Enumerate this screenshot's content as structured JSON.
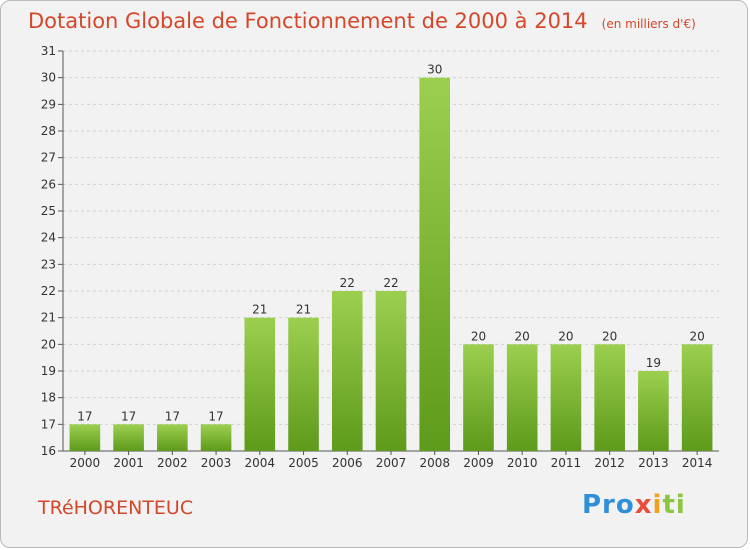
{
  "header": {
    "title": "Dotation Globale de Fonctionnement de 2000 à 2014",
    "unit": "(en milliers d'€)"
  },
  "footer": {
    "commune": "TRéHORENTEUC",
    "logo_parts": [
      "Pro",
      "x",
      "i",
      "ti"
    ]
  },
  "colors": {
    "bar_top": "#9ccf4f",
    "bar_bottom": "#5e9a1b",
    "title": "#d4472b",
    "grid": "#cfcfcf"
  },
  "chart_data": {
    "type": "bar",
    "title": "Dotation Globale de Fonctionnement de 2000 à 2014",
    "subtitle": "(en milliers d'€)",
    "categories": [
      "2000",
      "2001",
      "2002",
      "2003",
      "2004",
      "2005",
      "2006",
      "2007",
      "2008",
      "2009",
      "2010",
      "2011",
      "2012",
      "2013",
      "2014"
    ],
    "values": [
      17,
      17,
      17,
      17,
      21,
      21,
      22,
      22,
      30,
      20,
      20,
      20,
      20,
      19,
      20
    ],
    "ylim": [
      16,
      31
    ],
    "yticks": [
      16,
      17,
      18,
      19,
      20,
      21,
      22,
      23,
      24,
      25,
      26,
      27,
      28,
      29,
      30,
      31
    ],
    "grid": "horizontal dashed",
    "legend": "none"
  }
}
